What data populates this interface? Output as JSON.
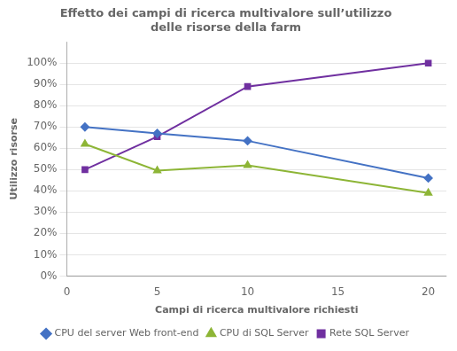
{
  "chart_data": {
    "type": "line",
    "title": "Effetto dei campi di ricerca multivalore sull’utilizzo\ndelle risorse della farm",
    "xlabel": "Campi di ricerca multivalore richiesti",
    "ylabel": "Utilizzo risorse",
    "x": [
      1,
      5,
      10,
      20
    ],
    "series": [
      {
        "name": "CPU del server Web front-end",
        "color": "#4472C4",
        "marker": "diamond",
        "values": [
          0.7,
          0.67,
          0.635,
          0.46
        ]
      },
      {
        "name": "CPU di SQL Server",
        "color": "#8db536",
        "marker": "triangle",
        "values": [
          0.62,
          0.495,
          0.52,
          0.39
        ]
      },
      {
        "name": "Rete SQL Server",
        "color": "#7030A0",
        "marker": "square",
        "values": [
          0.5,
          0.655,
          0.89,
          1.0
        ]
      }
    ],
    "xlim": [
      0,
      21
    ],
    "xticks": [
      0,
      5,
      10,
      15,
      20
    ],
    "ylim": [
      0,
      1.1
    ],
    "yticks": [
      {
        "value": 0.0,
        "label": "0%"
      },
      {
        "value": 0.1,
        "label": "10%"
      },
      {
        "value": 0.2,
        "label": "20%"
      },
      {
        "value": 0.3,
        "label": "30%"
      },
      {
        "value": 0.4,
        "label": "40%"
      },
      {
        "value": 0.5,
        "label": "50%"
      },
      {
        "value": 0.6,
        "label": "60%"
      },
      {
        "value": 0.7,
        "label": "70%"
      },
      {
        "value": 0.8,
        "label": "80%"
      },
      {
        "value": 0.9,
        "label": "90%"
      },
      {
        "value": 1.0,
        "label": "100%"
      }
    ],
    "grid": "y",
    "legend": "bottom"
  }
}
